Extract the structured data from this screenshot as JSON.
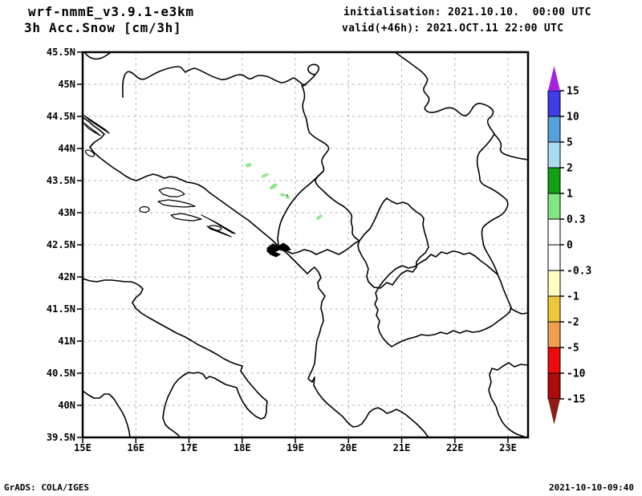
{
  "header": {
    "model_title": "wrf-nmmE_v3.9.1-e3km",
    "field_title": "3h Acc.Snow [cm/3h]",
    "init_line": "initialisation: 2021.10.10.  00:00 UTC",
    "valid_line": "valid(+46h): 2021.OCT.11 22:00 UTC"
  },
  "footer": {
    "credit": "GrADS: COLA/IGES",
    "created": "2021-10-10-09:40"
  },
  "axes": {
    "lat_labels": [
      "45.5N",
      "45N",
      "44.5N",
      "44N",
      "43.5N",
      "43N",
      "42.5N",
      "42N",
      "41.5N",
      "41N",
      "40.5N",
      "40N",
      "39.5N"
    ],
    "lon_labels": [
      "15E",
      "16E",
      "17E",
      "18E",
      "19E",
      "20E",
      "21E",
      "22E",
      "23E"
    ],
    "extent": {
      "lon_min": 15,
      "lon_max": 23.38,
      "lat_min": 39.5,
      "lat_max": 45.5
    }
  },
  "colorbar": {
    "units": "cm/3h",
    "tick_labels": [
      "15",
      "10",
      "5",
      "2",
      "1",
      "0.3",
      "0",
      "-0.3",
      "-1",
      "-2",
      "-5",
      "-10",
      "-15"
    ],
    "segment_colors": [
      "#3C3CE8",
      "#55A0DC",
      "#A8DCF0",
      "#14A014",
      "#82E682",
      "#FFFFFF",
      "#FFFFFF",
      "#FFFFC4",
      "#EEC83C",
      "#F2A04E",
      "#EE0A0A",
      "#B00A0A"
    ],
    "arrow_top_color": "#A522E0",
    "arrow_bottom_color": "#8E1C16"
  },
  "map": {
    "grid_color": "#B4B4B4",
    "line_color": "#000000",
    "snow_fill": "#8CE88C",
    "snow_value_range_cm": [
      0.3,
      1
    ],
    "snow_marks": [
      {
        "lon": 18.12,
        "lat": 43.74,
        "rx": 4,
        "ry": 2.4,
        "rot": -20
      },
      {
        "lon": 18.43,
        "lat": 43.58,
        "rx": 5,
        "ry": 2,
        "rot": -25
      },
      {
        "lon": 18.59,
        "lat": 43.41,
        "rx": 5.5,
        "ry": 2.5,
        "rot": -35
      },
      {
        "lon": 18.76,
        "lat": 43.28,
        "rx": 3,
        "ry": 2,
        "rot": 0
      },
      {
        "lon": 18.86,
        "lat": 43.24,
        "rx": 2.5,
        "ry": 2,
        "rot": 0
      },
      {
        "lon": 18.84,
        "lat": 43.27,
        "rx": 1.6,
        "ry": 1.2,
        "rot": 0,
        "color": "#2FA832"
      },
      {
        "lon": 19.45,
        "lat": 42.93,
        "rx": 4.5,
        "ry": 2,
        "rot": -40
      }
    ]
  }
}
